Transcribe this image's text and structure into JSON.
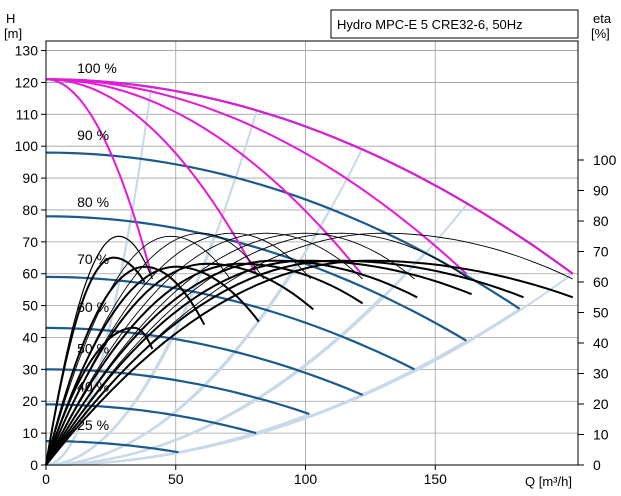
{
  "chart_data": {
    "type": "line",
    "title": "Hydro MPC-E 5 CRE32-6, 50Hz",
    "left_axis_title": [
      "H",
      "[m]"
    ],
    "right_axis_title": [
      "eta",
      "[%]"
    ],
    "xlabel": "Q [m³/h]",
    "x_ticks": [
      "0",
      "50",
      "100",
      "150"
    ],
    "x_tick_values": [
      0,
      50,
      100,
      150
    ],
    "y_left_ticks": [
      "0",
      "10",
      "20",
      "30",
      "40",
      "50",
      "60",
      "70",
      "80",
      "90",
      "100",
      "110",
      "120",
      "130"
    ],
    "y_left_tick_values": [
      0,
      10,
      20,
      30,
      40,
      50,
      60,
      70,
      80,
      90,
      100,
      110,
      120,
      130
    ],
    "y_right_ticks": [
      "0",
      "10",
      "20",
      "30",
      "40",
      "50",
      "60",
      "70",
      "80",
      "90",
      "100"
    ],
    "y_right_tick_values": [
      0,
      10,
      20,
      30,
      40,
      50,
      60,
      70,
      80,
      90,
      100
    ],
    "xlim": [
      0,
      205
    ],
    "ylim_left": [
      0,
      133
    ],
    "ylim_right": [
      0,
      100
    ],
    "grid": true,
    "speed_labels": [
      "100 %",
      "90 %",
      "80 %",
      "70 %",
      "60 %",
      "50 %",
      "40 %",
      "25 %"
    ],
    "speed_label_positions": [
      {
        "q": 12,
        "h": 123
      },
      {
        "q": 12,
        "h": 102
      },
      {
        "q": 12,
        "h": 81
      },
      {
        "q": 12,
        "h": 63
      },
      {
        "q": 12,
        "h": 48
      },
      {
        "q": 12,
        "h": 35
      },
      {
        "q": 12,
        "h": 23
      },
      {
        "q": 12,
        "h": 11
      }
    ],
    "outer_head_curves": [
      {
        "speed": 1.0,
        "h0": 121,
        "qmax": 203,
        "hend": 60
      },
      {
        "speed": 0.9,
        "h0": 98,
        "qmax": 182.5,
        "hend": 49
      },
      {
        "speed": 0.8,
        "h0": 78,
        "qmax": 162,
        "hend": 39
      },
      {
        "speed": 0.7,
        "h0": 59,
        "qmax": 142,
        "hend": 30
      },
      {
        "speed": 0.6,
        "h0": 43,
        "qmax": 122,
        "hend": 22
      },
      {
        "speed": 0.5,
        "h0": 30,
        "qmax": 101.5,
        "hend": 16
      },
      {
        "speed": 0.4,
        "h0": 19,
        "qmax": 81,
        "hend": 10
      },
      {
        "speed": 0.25,
        "h0": 7.5,
        "qmax": 51,
        "hend": 4
      }
    ],
    "pump_curves_100": [
      {
        "pumps": 1,
        "qmax": 40.5
      },
      {
        "pumps": 2,
        "qmax": 81
      },
      {
        "pumps": 3,
        "qmax": 121.5
      },
      {
        "pumps": 4,
        "qmax": 162
      },
      {
        "pumps": 5,
        "qmax": 203
      }
    ],
    "power_curve_h0": 121,
    "power_curve_hend": 60,
    "efficiency_curves": [
      {
        "q_peak": 28,
        "eta_peak": 75,
        "q_end": 41,
        "eta_end": 61,
        "color": "#000000",
        "width": 1.2
      },
      {
        "q_peak": 48,
        "eta_peak": 75,
        "q_end": 71,
        "eta_end": 61,
        "color": "#000000",
        "width": 0.9
      },
      {
        "q_peak": 60,
        "eta_peak": 76,
        "q_end": 84,
        "eta_end": 61,
        "color": "#000000",
        "width": 0.9
      },
      {
        "q_peak": 72,
        "eta_peak": 76,
        "q_end": 102,
        "eta_end": 61,
        "color": "#000000",
        "width": 0.9
      },
      {
        "q_peak": 85,
        "eta_peak": 76,
        "q_end": 122,
        "eta_end": 61,
        "color": "#000000",
        "width": 0.9
      },
      {
        "q_peak": 100,
        "eta_peak": 76,
        "q_end": 142,
        "eta_end": 61,
        "color": "#000000",
        "width": 0.9
      },
      {
        "q_peak": 113,
        "eta_peak": 76,
        "q_end": 163,
        "eta_end": 61,
        "color": "#000000",
        "width": 0.9
      },
      {
        "q_peak": 130,
        "eta_peak": 76,
        "q_end": 203,
        "eta_end": 61,
        "color": "#000000",
        "width": 0.9
      },
      {
        "q_peak": 26,
        "eta_peak": 68,
        "q_end": 38,
        "eta_end": 60,
        "color": "#000000",
        "width": 2.0
      },
      {
        "q_peak": 38,
        "eta_peak": 65,
        "q_end": 61,
        "eta_end": 46,
        "color": "#000000",
        "width": 2.0
      },
      {
        "q_peak": 50,
        "eta_peak": 65,
        "q_end": 82,
        "eta_end": 47,
        "color": "#000000",
        "width": 2.0
      },
      {
        "q_peak": 62,
        "eta_peak": 66,
        "q_end": 103,
        "eta_end": 51,
        "color": "#000000",
        "width": 2.0
      },
      {
        "q_peak": 75,
        "eta_peak": 66,
        "q_end": 122,
        "eta_end": 53,
        "color": "#000000",
        "width": 2.0
      },
      {
        "q_peak": 88,
        "eta_peak": 67,
        "q_end": 143,
        "eta_end": 55,
        "color": "#000000",
        "width": 2.0
      },
      {
        "q_peak": 100,
        "eta_peak": 67,
        "q_end": 164,
        "eta_end": 56,
        "color": "#000000",
        "width": 2.0
      },
      {
        "q_peak": 112,
        "eta_peak": 67,
        "q_end": 184,
        "eta_end": 55,
        "color": "#000000",
        "width": 2.0
      },
      {
        "q_peak": 124,
        "eta_peak": 67,
        "q_end": 203,
        "eta_end": 55,
        "color": "#000000",
        "width": 2.0
      },
      {
        "q_peak": 34,
        "eta_peak": 45,
        "q_end": 41,
        "eta_end": 38,
        "color": "#000000",
        "width": 2.0
      }
    ],
    "colors": {
      "outer_curve": "#1b5a8c",
      "pump_curve": "#e619d9",
      "system_fan": "#c9d9e8",
      "grid": "#a0a0a0",
      "eff_curve": "#000000"
    }
  }
}
